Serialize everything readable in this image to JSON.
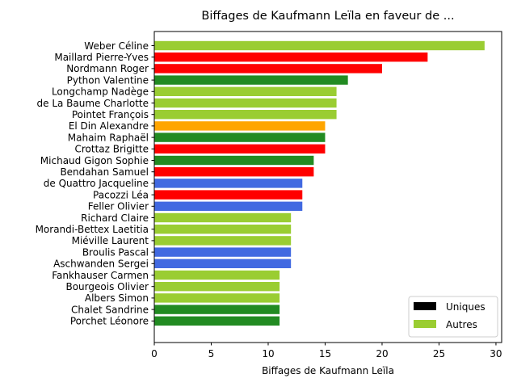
{
  "chart_data": {
    "type": "bar",
    "orientation": "horizontal",
    "title": "Biffages de Kaufmann Leïla en faveur de ...",
    "xlabel": "Biffages de Kaufmann Leïla",
    "ylabel": "",
    "xlim": [
      0,
      30.5
    ],
    "xticks": [
      0,
      5,
      10,
      15,
      20,
      25,
      30
    ],
    "grid": false,
    "legend_position": "lower-right",
    "legend": [
      {
        "label": "Uniques",
        "color": "#000000"
      },
      {
        "label": "Autres",
        "color": "#9ACD32"
      }
    ],
    "categories": [
      "Weber Céline",
      "Maillard Pierre-Yves",
      "Nordmann Roger",
      "Python Valentine",
      "Longchamp Nadège",
      "de La Baume Charlotte",
      "Pointet François",
      "El Din Alexandre",
      "Mahaim Raphaël",
      "Crottaz Brigitte",
      "Michaud Gigon Sophie",
      "Bendahan Samuel",
      "de Quattro Jacqueline",
      "Pacozzi Léa",
      "Feller Olivier",
      "Richard Claire",
      "Morandi-Bettex Laetitia",
      "Miéville Laurent",
      "Broulis Pascal",
      "Aschwanden Sergei",
      "Fankhauser Carmen",
      "Bourgeois Olivier",
      "Albers Simon",
      "Chalet Sandrine",
      "Porchet Léonore"
    ],
    "values": [
      29,
      24,
      20,
      17,
      16,
      16,
      16,
      15,
      15,
      15,
      14,
      14,
      13,
      13,
      13,
      12,
      12,
      12,
      12,
      12,
      11,
      11,
      11,
      11,
      11
    ],
    "colors": [
      "#9ACD32",
      "#FF0000",
      "#FF0000",
      "#228B22",
      "#9ACD32",
      "#9ACD32",
      "#9ACD32",
      "#FFA500",
      "#228B22",
      "#FF0000",
      "#228B22",
      "#FF0000",
      "#4169E1",
      "#FF0000",
      "#4169E1",
      "#9ACD32",
      "#9ACD32",
      "#9ACD32",
      "#4169E1",
      "#4169E1",
      "#9ACD32",
      "#9ACD32",
      "#9ACD32",
      "#228B22",
      "#228B22"
    ]
  }
}
